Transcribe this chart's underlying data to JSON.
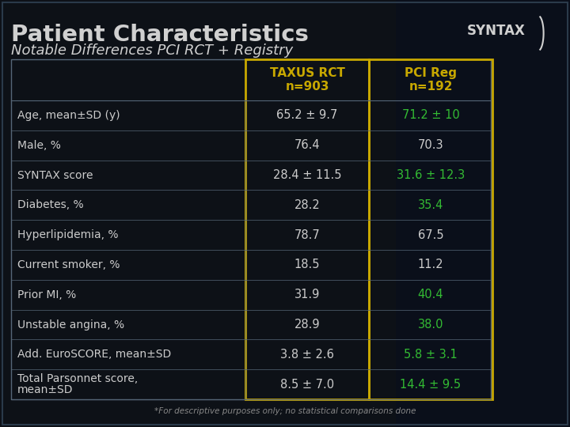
{
  "title": "Patient Characteristics",
  "subtitle": "Notable Differences PCI RCT + Registry",
  "bg_color": "#0d1117",
  "title_color": "#d0d0d0",
  "subtitle_color": "#d0d0d0",
  "col1_header": "TAXUS RCT\nn=903",
  "col2_header": "PCI Reg\nn=192",
  "col1_header_color": "#c8a800",
  "col2_header_color": "#c8a800",
  "col_border": "#c8a800",
  "rows": [
    {
      "label": "Age, mean±SD (y)",
      "col1": "65.2 ± 9.7",
      "col2": "71.2 ± 10",
      "col2_highlight": true
    },
    {
      "label": "Male, %",
      "col1": "76.4",
      "col2": "70.3",
      "col2_highlight": false
    },
    {
      "label": "SYNTAX score",
      "col1": "28.4 ± 11.5",
      "col2": "31.6 ± 12.3",
      "col2_highlight": true
    },
    {
      "label": "Diabetes, %",
      "col1": "28.2",
      "col2": "35.4",
      "col2_highlight": true
    },
    {
      "label": "Hyperlipidemia, %",
      "col1": "78.7",
      "col2": "67.5",
      "col2_highlight": false
    },
    {
      "label": "Current smoker, %",
      "col1": "18.5",
      "col2": "11.2",
      "col2_highlight": false
    },
    {
      "label": "Prior MI, %",
      "col1": "31.9",
      "col2": "40.4",
      "col2_highlight": true
    },
    {
      "label": "Unstable angina, %",
      "col1": "28.9",
      "col2": "38.0",
      "col2_highlight": true
    },
    {
      "label": "Add. EuroSCORE, mean±SD",
      "col1": "3.8 ± 2.6",
      "col2": "5.8 ± 3.1",
      "col2_highlight": true
    },
    {
      "label": "Total Parsonnet score,\nmean±SD",
      "col1": "8.5 ± 7.0",
      "col2": "14.4 ± 9.5",
      "col2_highlight": true
    }
  ],
  "row_text_color": "#cccccc",
  "highlight_color": "#33bb33",
  "normal_col2_color": "#cccccc",
  "footnote": "*For descriptive purposes only; no statistical comparisons done",
  "footnote_color": "#888888",
  "table_border_color": "#556677",
  "syntax_text_color": "#d0d0d0"
}
